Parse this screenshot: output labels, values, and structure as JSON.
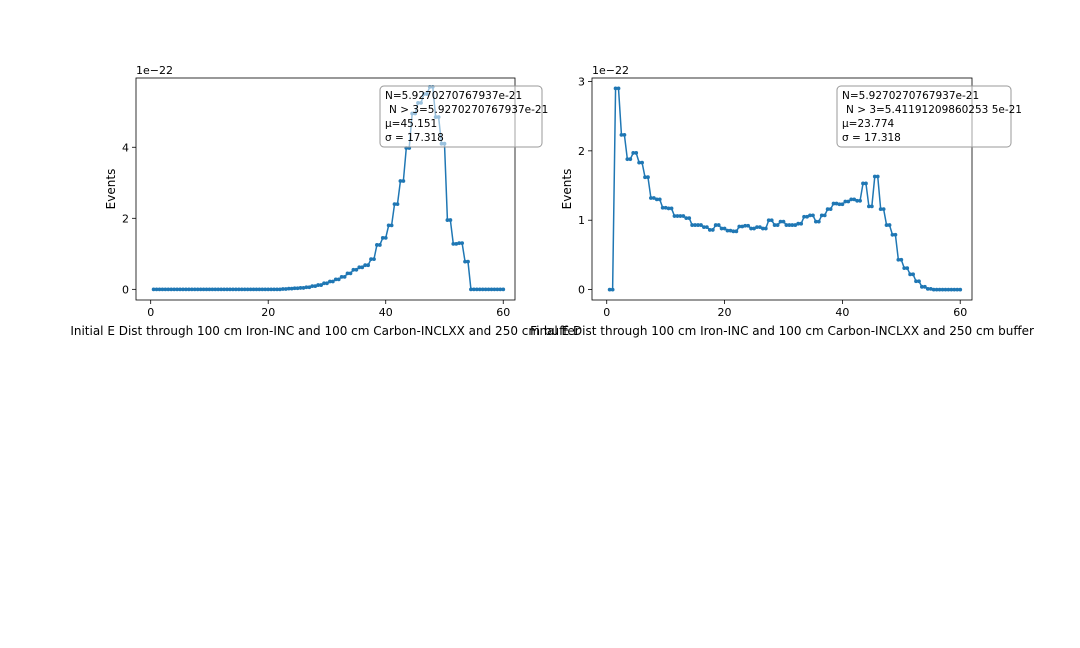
{
  "chart_data": [
    {
      "type": "line",
      "step": "post",
      "title": "Initial E Dist through 100 cm Iron-INC and 100 cm Carbon-INCLXX and 250 cm buffer",
      "xlabel": "",
      "ylabel": "Events",
      "offset_label": "1e−22",
      "xlim": [
        -2.5,
        62
      ],
      "ylim": [
        -0.3,
        5.95
      ],
      "xticks": [
        0,
        20,
        40,
        60
      ],
      "yticks": [
        0,
        2,
        4
      ],
      "grid": false,
      "color": "#1f77b4",
      "stats": [
        "N=5.9270270767937e-21",
        "N > 3=5.9270270767937e-21",
        "μ=45.151",
        "σ = 17.318"
      ],
      "stats_position": "top-right",
      "x": [
        0.5,
        1.5,
        2.5,
        3.5,
        4.5,
        5.5,
        6.5,
        7.5,
        8.5,
        9.5,
        10.5,
        11.5,
        12.5,
        13.5,
        14.5,
        15.5,
        16.5,
        17.5,
        18.5,
        19.5,
        20.5,
        21.5,
        22.5,
        23.5,
        24.5,
        25.5,
        26.5,
        27.5,
        28.5,
        29.5,
        30.5,
        31.5,
        32.5,
        33.5,
        34.5,
        35.5,
        36.5,
        37.5,
        38.5,
        39.5,
        40.5,
        41.5,
        42.5,
        43.5,
        44.5,
        45.5,
        46.5,
        47.5,
        48.5,
        49.5,
        50.5,
        51.5,
        52.5,
        53.5,
        54.5,
        55.5,
        56.5,
        57.5,
        58.5,
        59.5
      ],
      "y": [
        0,
        0,
        0,
        0,
        0,
        0,
        0,
        0,
        0,
        0,
        0,
        0,
        0,
        0,
        0,
        0,
        0,
        0,
        0,
        0,
        0,
        0,
        0.01,
        0.02,
        0.03,
        0.04,
        0.06,
        0.09,
        0.12,
        0.17,
        0.22,
        0.28,
        0.35,
        0.45,
        0.55,
        0.62,
        0.68,
        0.85,
        1.25,
        1.45,
        1.8,
        2.4,
        3.05,
        3.98,
        4.95,
        5.25,
        5.5,
        5.7,
        4.85,
        4.1,
        1.95,
        1.28,
        1.3,
        0.78,
        0,
        0,
        0,
        0,
        0,
        0
      ]
    },
    {
      "type": "line",
      "step": "post",
      "title": "Final E Dist through 100 cm Iron-INC and 100 cm Carbon-INCLXX and 250 cm buffer",
      "xlabel": "",
      "ylabel": "Events",
      "offset_label": "1e−22",
      "xlim": [
        -2.5,
        62
      ],
      "ylim": [
        -0.15,
        3.05
      ],
      "xticks": [
        0,
        20,
        40,
        60
      ],
      "yticks": [
        0,
        1,
        2,
        3
      ],
      "grid": false,
      "color": "#1f77b4",
      "stats": [
        "N=5.9270270767937e-21",
        "N > 3=5.41191209860253 5e-21",
        "μ=23.774",
        "σ = 17.318"
      ],
      "stats_position": "top-right",
      "x": [
        0.5,
        1.5,
        2.5,
        3.5,
        4.5,
        5.5,
        6.5,
        7.5,
        8.5,
        9.5,
        10.5,
        11.5,
        12.5,
        13.5,
        14.5,
        15.5,
        16.5,
        17.5,
        18.5,
        19.5,
        20.5,
        21.5,
        22.5,
        23.5,
        24.5,
        25.5,
        26.5,
        27.5,
        28.5,
        29.5,
        30.5,
        31.5,
        32.5,
        33.5,
        34.5,
        35.5,
        36.5,
        37.5,
        38.5,
        39.5,
        40.5,
        41.5,
        42.5,
        43.5,
        44.5,
        45.5,
        46.5,
        47.5,
        48.5,
        49.5,
        50.5,
        51.5,
        52.5,
        53.5,
        54.5,
        55.5,
        56.5,
        57.5,
        58.5,
        59.5
      ],
      "y": [
        0,
        2.9,
        2.23,
        1.88,
        1.97,
        1.83,
        1.62,
        1.32,
        1.3,
        1.18,
        1.17,
        1.06,
        1.06,
        1.03,
        0.93,
        0.93,
        0.9,
        0.86,
        0.93,
        0.88,
        0.85,
        0.84,
        0.91,
        0.92,
        0.88,
        0.9,
        0.88,
        1.0,
        0.93,
        0.98,
        0.93,
        0.93,
        0.95,
        1.05,
        1.07,
        0.98,
        1.07,
        1.16,
        1.24,
        1.23,
        1.27,
        1.3,
        1.28,
        1.53,
        1.2,
        1.63,
        1.16,
        0.93,
        0.79,
        0.43,
        0.31,
        0.22,
        0.12,
        0.04,
        0.01,
        0,
        0,
        0,
        0,
        0
      ]
    }
  ]
}
